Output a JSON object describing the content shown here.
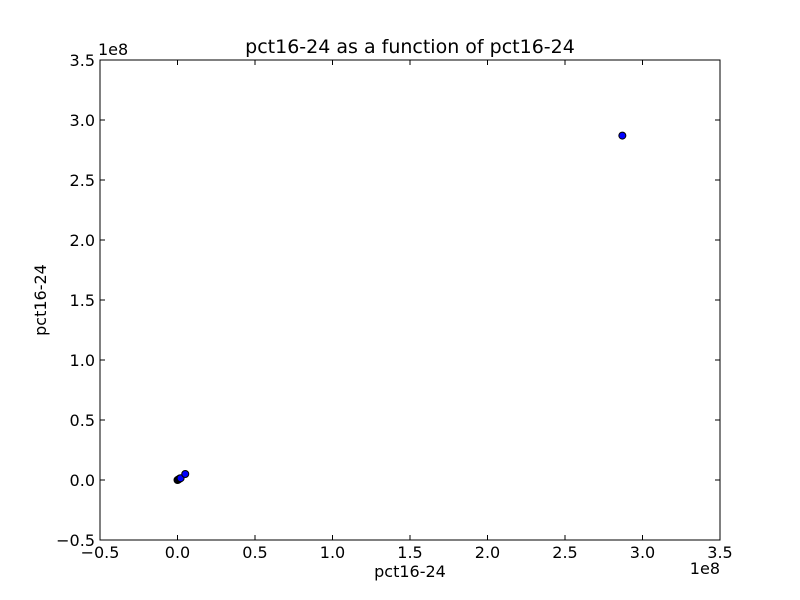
{
  "chart_data": {
    "type": "scatter",
    "title": "pct16-24 as a function of pct16-24",
    "xlabel": "pct16-24",
    "ylabel": "pct16-24",
    "x_offset_label": "1e8",
    "y_offset_label": "1e8",
    "xlim": [
      -0.5,
      3.5
    ],
    "ylim": [
      -0.5,
      3.5
    ],
    "xticks": [
      -0.5,
      0.0,
      0.5,
      1.0,
      1.5,
      2.0,
      2.5,
      3.0,
      3.5
    ],
    "yticks": [
      -0.5,
      0.0,
      0.5,
      1.0,
      1.5,
      2.0,
      2.5,
      3.0,
      3.5
    ],
    "xtick_labels": [
      "−0.5",
      "0.0",
      "0.5",
      "1.0",
      "1.5",
      "2.0",
      "2.5",
      "3.0",
      "3.5"
    ],
    "ytick_labels": [
      "−0.5",
      "0.0",
      "0.5",
      "1.0",
      "1.5",
      "2.0",
      "2.5",
      "3.0",
      "3.5"
    ],
    "points": [
      {
        "x": 0.0,
        "y": 0.0
      },
      {
        "x": 0.005,
        "y": 0.003
      },
      {
        "x": 0.01,
        "y": 0.008
      },
      {
        "x": 0.015,
        "y": 0.012
      },
      {
        "x": 0.02,
        "y": 0.015
      },
      {
        "x": 0.05,
        "y": 0.05
      },
      {
        "x": 2.87,
        "y": 2.87
      }
    ],
    "marker_color": "#0000ff",
    "marker_edge_color": "#000000",
    "grid": false,
    "legend": "none"
  }
}
